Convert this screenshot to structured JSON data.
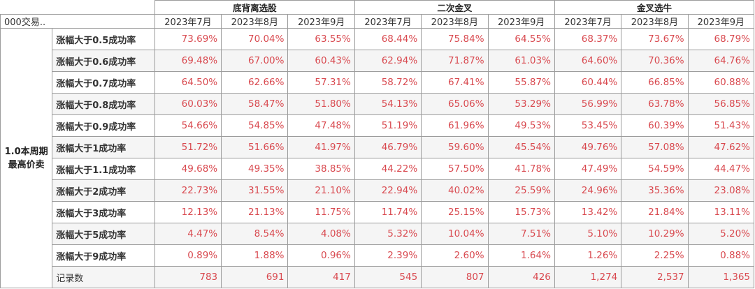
{
  "corner_label": "000交易..",
  "side_label": [
    "1.0本周期",
    "最高价卖"
  ],
  "strategies": [
    "底背离选股",
    "二次金叉",
    "金叉选牛"
  ],
  "months": [
    "2023年7月",
    "2023年8月",
    "2023年9月"
  ],
  "colors": {
    "value_text": "#d94a50",
    "alt_row": "#f5f5f5",
    "border": "#9c9c9c"
  },
  "chart_data": {
    "type": "table",
    "columns": [
      "底背离选股 2023年7月",
      "底背离选股 2023年8月",
      "底背离选股 2023年9月",
      "二次金叉 2023年7月",
      "二次金叉 2023年8月",
      "二次金叉 2023年9月",
      "金叉选牛 2023年7月",
      "金叉选牛 2023年8月",
      "金叉选牛 2023年9月"
    ],
    "rows": [
      {
        "label": "涨幅大于0.5成功率",
        "values": [
          "73.69%",
          "70.04%",
          "63.55%",
          "68.44%",
          "75.84%",
          "64.55%",
          "68.37%",
          "73.67%",
          "68.79%"
        ]
      },
      {
        "label": "涨幅大于0.6成功率",
        "values": [
          "69.48%",
          "67.00%",
          "60.43%",
          "62.94%",
          "71.87%",
          "61.03%",
          "64.60%",
          "70.36%",
          "64.76%"
        ]
      },
      {
        "label": "涨幅大于0.7成功率",
        "values": [
          "64.50%",
          "62.66%",
          "57.31%",
          "58.72%",
          "67.41%",
          "55.87%",
          "60.44%",
          "66.85%",
          "60.88%"
        ]
      },
      {
        "label": "涨幅大于0.8成功率",
        "values": [
          "60.03%",
          "58.47%",
          "51.80%",
          "54.13%",
          "65.06%",
          "53.29%",
          "56.99%",
          "63.78%",
          "56.85%"
        ]
      },
      {
        "label": "涨幅大于0.9成功率",
        "values": [
          "54.66%",
          "54.85%",
          "47.48%",
          "51.19%",
          "61.96%",
          "49.53%",
          "53.45%",
          "60.39%",
          "51.43%"
        ]
      },
      {
        "label": "涨幅大于1成功率",
        "values": [
          "51.72%",
          "51.66%",
          "41.97%",
          "46.79%",
          "59.60%",
          "45.54%",
          "49.76%",
          "57.08%",
          "47.62%"
        ]
      },
      {
        "label": "涨幅大于1.1成功率",
        "values": [
          "49.68%",
          "49.35%",
          "38.85%",
          "44.22%",
          "57.50%",
          "41.78%",
          "47.49%",
          "54.59%",
          "44.47%"
        ]
      },
      {
        "label": "涨幅大于2成功率",
        "values": [
          "22.73%",
          "31.55%",
          "21.10%",
          "22.94%",
          "40.02%",
          "25.59%",
          "24.96%",
          "35.36%",
          "23.08%"
        ]
      },
      {
        "label": "涨幅大于3成功率",
        "values": [
          "12.13%",
          "21.13%",
          "11.75%",
          "11.74%",
          "25.15%",
          "15.73%",
          "13.42%",
          "21.84%",
          "13.11%"
        ]
      },
      {
        "label": "涨幅大于5成功率",
        "values": [
          "4.47%",
          "8.54%",
          "4.08%",
          "5.32%",
          "10.04%",
          "7.51%",
          "5.10%",
          "10.29%",
          "5.20%"
        ]
      },
      {
        "label": "涨幅大于9成功率",
        "values": [
          "0.89%",
          "1.88%",
          "0.96%",
          "2.39%",
          "2.60%",
          "1.64%",
          "1.26%",
          "2.25%",
          "0.88%"
        ]
      },
      {
        "label": "记录数",
        "values": [
          "783",
          "691",
          "417",
          "545",
          "807",
          "426",
          "1,274",
          "2,537",
          "1,365"
        ]
      }
    ]
  }
}
